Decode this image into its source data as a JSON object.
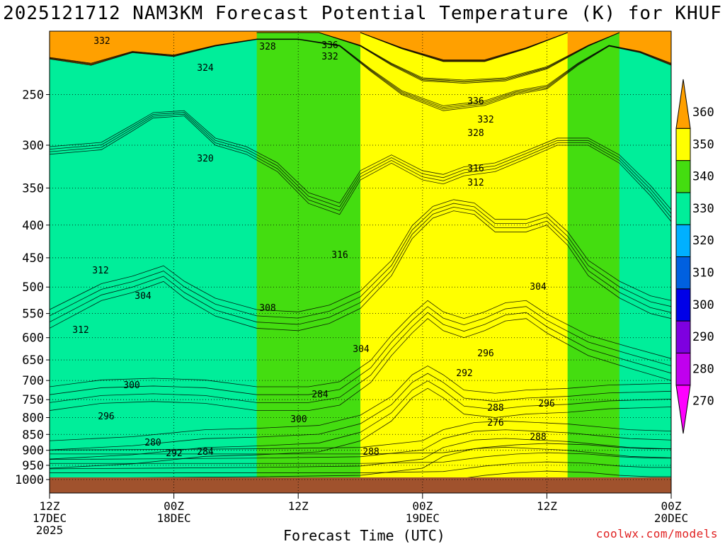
{
  "title": "2025121712 NAM3KM Forecast Potential Temperature (K) for KHUF",
  "credit": "coolwx.com/models",
  "chart_data": {
    "type": "area",
    "title": "2025121712 NAM3KM Forecast Potential Temperature (K) for KHUF",
    "xlabel": "Forecast Time (UTC)",
    "ylabel": "",
    "y_scale": "log",
    "y_reversed": true,
    "y_ticks": [
      250,
      300,
      350,
      400,
      450,
      500,
      550,
      600,
      650,
      700,
      750,
      800,
      850,
      900,
      950,
      1000
    ],
    "x_ticks": [
      {
        "hour": 0,
        "lines": [
          "12Z",
          "17DEC",
          "2025"
        ]
      },
      {
        "hour": 12,
        "lines": [
          "00Z",
          "18DEC"
        ]
      },
      {
        "hour": 24,
        "lines": [
          "12Z"
        ]
      },
      {
        "hour": 36,
        "lines": [
          "00Z",
          "19DEC"
        ]
      },
      {
        "hour": 48,
        "lines": [
          "12Z"
        ]
      },
      {
        "hour": 60,
        "lines": [
          "00Z",
          "20DEC"
        ]
      }
    ],
    "xlim": [
      0,
      60
    ],
    "ylim": [
      1000,
      200
    ],
    "grid": true,
    "colorbar": {
      "levels": [
        270,
        280,
        290,
        300,
        310,
        320,
        330,
        340,
        350,
        360
      ],
      "colors": [
        "#ff00ff",
        "#c000ee",
        "#7e00e0",
        "#0000e8",
        "#0060e0",
        "#00b0ff",
        "#00ee9a",
        "#44dd10",
        "#ffff00",
        "#ffa000"
      ],
      "labels": [
        "270",
        "280",
        "290",
        "300",
        "310",
        "320",
        "330",
        "340",
        "350",
        "360"
      ]
    },
    "series": [
      {
        "name": "270",
        "values": [
          [
            0,
            1010
          ],
          [
            9,
            1010
          ],
          [
            30,
            1010
          ],
          [
            38,
            1005
          ],
          [
            42,
            985
          ],
          [
            45,
            975
          ],
          [
            48,
            970
          ],
          [
            52,
            975
          ],
          [
            55,
            985
          ],
          [
            58,
            990
          ],
          [
            60,
            990
          ]
        ]
      },
      {
        "name": "280",
        "values": [
          [
            0,
            995
          ],
          [
            9,
            993
          ],
          [
            20,
            990
          ],
          [
            30,
            985
          ],
          [
            36,
            960
          ],
          [
            38,
            920
          ],
          [
            41,
            895
          ],
          [
            44,
            890
          ],
          [
            47,
            895
          ],
          [
            50,
            900
          ],
          [
            53,
            910
          ],
          [
            56,
            920
          ],
          [
            60,
            925
          ]
        ]
      },
      {
        "name": "290",
        "values": [
          [
            0,
            960
          ],
          [
            8,
            945
          ],
          [
            15,
            920
          ],
          [
            20,
            915
          ],
          [
            26,
            905
          ],
          [
            30,
            870
          ],
          [
            33,
            810
          ],
          [
            35,
            745
          ],
          [
            36.5,
            720
          ],
          [
            38,
            745
          ],
          [
            40,
            790
          ],
          [
            43,
            800
          ],
          [
            46,
            790
          ],
          [
            50,
            785
          ],
          [
            54,
            775
          ],
          [
            60,
            770
          ]
        ]
      },
      {
        "name": "300",
        "values": [
          [
            0,
            780
          ],
          [
            5,
            760
          ],
          [
            10,
            755
          ],
          [
            15,
            760
          ],
          [
            20,
            780
          ],
          [
            25,
            780
          ],
          [
            28,
            765
          ],
          [
            31,
            705
          ],
          [
            33,
            640
          ],
          [
            35,
            590
          ],
          [
            36.5,
            560
          ],
          [
            38,
            585
          ],
          [
            40,
            600
          ],
          [
            42,
            585
          ],
          [
            44,
            565
          ],
          [
            46,
            560
          ],
          [
            48,
            590
          ],
          [
            52,
            640
          ],
          [
            56,
            670
          ],
          [
            60,
            700
          ]
        ]
      },
      {
        "name": "310",
        "values": [
          [
            0,
            580
          ],
          [
            5,
            525
          ],
          [
            8,
            510
          ],
          [
            11,
            490
          ],
          [
            13,
            520
          ],
          [
            16,
            555
          ],
          [
            20,
            580
          ],
          [
            24,
            585
          ],
          [
            27,
            570
          ],
          [
            30,
            540
          ],
          [
            33,
            480
          ],
          [
            35,
            420
          ],
          [
            37,
            390
          ],
          [
            39,
            380
          ],
          [
            41,
            385
          ],
          [
            43,
            410
          ],
          [
            46,
            410
          ],
          [
            48,
            400
          ],
          [
            50,
            430
          ],
          [
            52,
            480
          ],
          [
            55,
            520
          ],
          [
            58,
            550
          ],
          [
            60,
            560
          ]
        ]
      },
      {
        "name": "320",
        "values": [
          [
            0,
            310
          ],
          [
            5,
            305
          ],
          [
            8,
            285
          ],
          [
            10,
            272
          ],
          [
            13,
            270
          ],
          [
            16,
            300
          ],
          [
            19,
            310
          ],
          [
            22,
            330
          ],
          [
            25,
            370
          ],
          [
            28,
            385
          ],
          [
            30,
            340
          ],
          [
            33,
            320
          ],
          [
            36,
            340
          ],
          [
            38,
            345
          ],
          [
            40,
            335
          ],
          [
            43,
            330
          ],
          [
            46,
            315
          ],
          [
            49,
            300
          ],
          [
            52,
            300
          ],
          [
            55,
            320
          ],
          [
            58,
            360
          ],
          [
            60,
            395
          ]
        ]
      },
      {
        "name": "330",
        "values": [
          [
            0,
            220
          ],
          [
            4,
            225
          ],
          [
            8,
            215
          ],
          [
            12,
            218
          ],
          [
            16,
            210
          ],
          [
            20,
            205
          ],
          [
            24,
            205
          ],
          [
            28,
            210
          ],
          [
            31,
            230
          ],
          [
            34,
            250
          ],
          [
            38,
            265
          ],
          [
            42,
            260
          ],
          [
            45,
            250
          ],
          [
            48,
            245
          ],
          [
            51,
            225
          ],
          [
            54,
            210
          ],
          [
            57,
            215
          ],
          [
            60,
            225
          ]
        ]
      },
      {
        "name": "340",
        "values": [
          [
            20,
            200
          ],
          [
            26,
            200
          ],
          [
            30,
            210
          ],
          [
            33,
            225
          ],
          [
            36,
            238
          ],
          [
            40,
            240
          ],
          [
            44,
            238
          ],
          [
            48,
            228
          ],
          [
            52,
            210
          ],
          [
            55,
            200
          ]
        ]
      },
      {
        "name": "350",
        "values": [
          [
            30,
            200
          ],
          [
            34,
            212
          ],
          [
            38,
            222
          ],
          [
            42,
            222
          ],
          [
            46,
            212
          ],
          [
            50,
            200
          ]
        ]
      }
    ],
    "contour_labels": [
      "332",
      "328",
      "336",
      "332",
      "324",
      "336",
      "332",
      "328",
      "320",
      "316",
      "312",
      "316",
      "312",
      "308",
      "304",
      "304",
      "312",
      "304",
      "296",
      "292",
      "300",
      "284",
      "288",
      "296",
      "300",
      "292",
      "288",
      "284",
      "276",
      "288",
      "280",
      "296"
    ]
  }
}
